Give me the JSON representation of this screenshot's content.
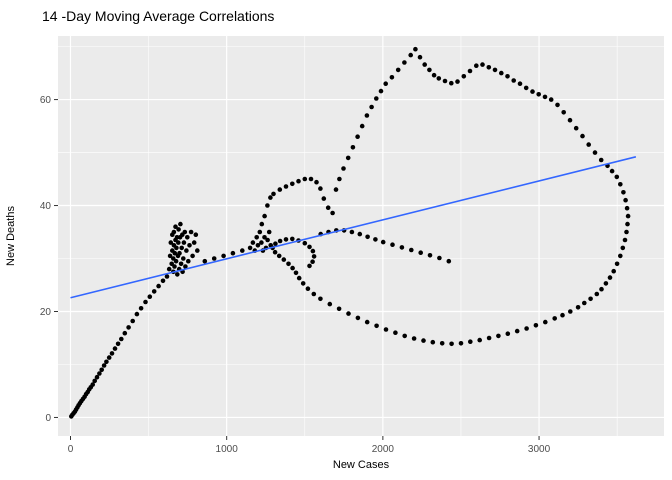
{
  "chart_data": {
    "type": "scatter",
    "title": "14 -Day Moving Average Correlations",
    "xlabel": "New Cases",
    "ylabel": "New Deaths",
    "xlim": [
      -80,
      3800
    ],
    "ylim": [
      -3.5,
      72
    ],
    "x_ticks": [
      0,
      1000,
      2000,
      3000
    ],
    "x_minor_ticks": [
      500,
      1500,
      2500,
      3500
    ],
    "y_ticks": [
      0,
      20,
      40,
      60
    ],
    "y_minor_ticks": [
      10,
      30,
      50,
      70
    ],
    "grid": true,
    "legend_position": "none",
    "panel_bg": "#EBEBEB",
    "grid_major_color": "#FFFFFF",
    "grid_minor_color": "#FFFFFF",
    "tick_mark_color": "#333333",
    "axis_text_color": "#4D4D4D",
    "axis_title_color": "#000000",
    "point_color": "#000000",
    "trend_color": "#3366FF",
    "trend_line": {
      "x1": 0,
      "y1": 22.6,
      "x2": 3620,
      "y2": 49.2
    },
    "points": [
      [
        5,
        0.2
      ],
      [
        12,
        0.5
      ],
      [
        20,
        0.8
      ],
      [
        28,
        1.1
      ],
      [
        36,
        1.5
      ],
      [
        44,
        1.9
      ],
      [
        52,
        2.3
      ],
      [
        60,
        2.7
      ],
      [
        70,
        3.1
      ],
      [
        80,
        3.5
      ],
      [
        90,
        3.9
      ],
      [
        100,
        4.4
      ],
      [
        110,
        4.8
      ],
      [
        120,
        5.3
      ],
      [
        130,
        5.7
      ],
      [
        142,
        6.2
      ],
      [
        155,
        6.9
      ],
      [
        170,
        7.6
      ],
      [
        185,
        8.3
      ],
      [
        200,
        9.0
      ],
      [
        215,
        9.8
      ],
      [
        230,
        10.5
      ],
      [
        248,
        11.3
      ],
      [
        266,
        12.1
      ],
      [
        285,
        13.0
      ],
      [
        305,
        13.9
      ],
      [
        325,
        14.8
      ],
      [
        348,
        15.9
      ],
      [
        372,
        17.0
      ],
      [
        398,
        18.2
      ],
      [
        425,
        19.5
      ],
      [
        452,
        20.6
      ],
      [
        480,
        21.8
      ],
      [
        508,
        22.8
      ],
      [
        536,
        23.8
      ],
      [
        564,
        24.8
      ],
      [
        592,
        25.8
      ],
      [
        618,
        26.6
      ],
      [
        632,
        28.0
      ],
      [
        638,
        30.5
      ],
      [
        642,
        33.0
      ],
      [
        648,
        29.0
      ],
      [
        652,
        31.5
      ],
      [
        652,
        34.5
      ],
      [
        658,
        27.5
      ],
      [
        658,
        30.0
      ],
      [
        662,
        32.5
      ],
      [
        662,
        35.0
      ],
      [
        666,
        28.5
      ],
      [
        668,
        31.0
      ],
      [
        672,
        33.5
      ],
      [
        672,
        36.0
      ],
      [
        676,
        29.5
      ],
      [
        678,
        32.0
      ],
      [
        682,
        34.0
      ],
      [
        684,
        27.0
      ],
      [
        688,
        30.5
      ],
      [
        690,
        33.0
      ],
      [
        692,
        35.5
      ],
      [
        696,
        28.0
      ],
      [
        698,
        31.0
      ],
      [
        702,
        34.0
      ],
      [
        704,
        36.5
      ],
      [
        708,
        29.0
      ],
      [
        712,
        32.0
      ],
      [
        716,
        34.5
      ],
      [
        718,
        27.5
      ],
      [
        722,
        30.0
      ],
      [
        726,
        33.0
      ],
      [
        732,
        35.0
      ],
      [
        736,
        28.5
      ],
      [
        742,
        31.5
      ],
      [
        748,
        34.0
      ],
      [
        754,
        29.5
      ],
      [
        762,
        32.5
      ],
      [
        772,
        35.0
      ],
      [
        782,
        30.5
      ],
      [
        792,
        33.0
      ],
      [
        802,
        34.5
      ],
      [
        812,
        31.5
      ],
      [
        860,
        29.5
      ],
      [
        920,
        30.0
      ],
      [
        980,
        30.5
      ],
      [
        1040,
        31.0
      ],
      [
        1100,
        31.5
      ],
      [
        1150,
        32.0
      ],
      [
        1168,
        33.0
      ],
      [
        1180,
        31.5
      ],
      [
        1192,
        34.0
      ],
      [
        1200,
        32.5
      ],
      [
        1212,
        35.0
      ],
      [
        1222,
        33.0
      ],
      [
        1232,
        31.5
      ],
      [
        1242,
        34.0
      ],
      [
        1252,
        32.0
      ],
      [
        1262,
        33.5
      ],
      [
        1272,
        35.0
      ],
      [
        1282,
        32.5
      ],
      [
        1225,
        36.5
      ],
      [
        1243,
        38.0
      ],
      [
        1261,
        40.0
      ],
      [
        1280,
        41.5
      ],
      [
        1300,
        42.2
      ],
      [
        1340,
        43.0
      ],
      [
        1380,
        43.6
      ],
      [
        1420,
        44.1
      ],
      [
        1460,
        44.6
      ],
      [
        1500,
        45.0
      ],
      [
        1540,
        45.0
      ],
      [
        1575,
        44.4
      ],
      [
        1600,
        43.2
      ],
      [
        1622,
        41.3
      ],
      [
        1650,
        39.6
      ],
      [
        1678,
        38.6
      ],
      [
        1700,
        43.0
      ],
      [
        1722,
        45.0
      ],
      [
        1748,
        47.0
      ],
      [
        1778,
        49.0
      ],
      [
        1808,
        51.0
      ],
      [
        1838,
        53.0
      ],
      [
        1868,
        55.0
      ],
      [
        1898,
        57.0
      ],
      [
        1928,
        58.6
      ],
      [
        1958,
        60.2
      ],
      [
        1988,
        61.6
      ],
      [
        2018,
        63.0
      ],
      [
        2058,
        64.2
      ],
      [
        2098,
        65.6
      ],
      [
        2138,
        67.0
      ],
      [
        2178,
        68.4
      ],
      [
        2208,
        69.5
      ],
      [
        2238,
        68.0
      ],
      [
        2268,
        66.6
      ],
      [
        2298,
        65.6
      ],
      [
        2328,
        64.6
      ],
      [
        2358,
        64.0
      ],
      [
        2398,
        63.5
      ],
      [
        2438,
        63.1
      ],
      [
        2478,
        63.4
      ],
      [
        2518,
        64.4
      ],
      [
        2558,
        65.4
      ],
      [
        2598,
        66.4
      ],
      [
        2638,
        66.6
      ],
      [
        2678,
        66.1
      ],
      [
        2718,
        65.6
      ],
      [
        2758,
        65.0
      ],
      [
        2798,
        64.4
      ],
      [
        2838,
        63.6
      ],
      [
        2878,
        63.0
      ],
      [
        2918,
        62.2
      ],
      [
        2958,
        61.5
      ],
      [
        2998,
        61.0
      ],
      [
        3038,
        60.5
      ],
      [
        3078,
        60.0
      ],
      [
        3118,
        59.0
      ],
      [
        3158,
        57.6
      ],
      [
        3198,
        56.1
      ],
      [
        3238,
        54.6
      ],
      [
        3278,
        53.1
      ],
      [
        3318,
        51.5
      ],
      [
        3358,
        50.0
      ],
      [
        3398,
        48.6
      ],
      [
        3438,
        47.5
      ],
      [
        3468,
        46.5
      ],
      [
        3498,
        45.4
      ],
      [
        3520,
        44.0
      ],
      [
        3540,
        42.5
      ],
      [
        3554,
        41.0
      ],
      [
        3564,
        39.5
      ],
      [
        3570,
        38.0
      ],
      [
        3566,
        36.5
      ],
      [
        3560,
        35.0
      ],
      [
        3550,
        33.5
      ],
      [
        3536,
        32.0
      ],
      [
        3520,
        30.5
      ],
      [
        3500,
        29.0
      ],
      [
        3478,
        27.6
      ],
      [
        3454,
        26.4
      ],
      [
        3428,
        25.3
      ],
      [
        3400,
        24.2
      ],
      [
        3370,
        23.3
      ],
      [
        3330,
        22.4
      ],
      [
        3290,
        21.6
      ],
      [
        3250,
        20.8
      ],
      [
        3200,
        20.0
      ],
      [
        3150,
        19.3
      ],
      [
        3100,
        18.7
      ],
      [
        3040,
        18.0
      ],
      [
        2980,
        17.4
      ],
      [
        2920,
        16.8
      ],
      [
        2860,
        16.3
      ],
      [
        2800,
        15.8
      ],
      [
        2740,
        15.4
      ],
      [
        2680,
        15.0
      ],
      [
        2620,
        14.6
      ],
      [
        2560,
        14.3
      ],
      [
        2500,
        14.0
      ],
      [
        2440,
        13.9
      ],
      [
        2380,
        14.0
      ],
      [
        2320,
        14.2
      ],
      [
        2260,
        14.5
      ],
      [
        2200,
        14.9
      ],
      [
        2140,
        15.4
      ],
      [
        2080,
        16.0
      ],
      [
        2020,
        16.6
      ],
      [
        1960,
        17.3
      ],
      [
        1900,
        18.0
      ],
      [
        1840,
        18.8
      ],
      [
        1780,
        19.6
      ],
      [
        1720,
        20.5
      ],
      [
        1660,
        21.4
      ],
      [
        1600,
        22.4
      ],
      [
        1558,
        23.3
      ],
      [
        1520,
        24.3
      ],
      [
        1490,
        25.3
      ],
      [
        1464,
        26.3
      ],
      [
        1444,
        27.3
      ],
      [
        1422,
        28.2
      ],
      [
        1396,
        29.0
      ],
      [
        1366,
        29.8
      ],
      [
        1336,
        30.5
      ],
      [
        1310,
        31.2
      ],
      [
        1294,
        32.0
      ],
      [
        1312,
        32.8
      ],
      [
        1342,
        33.3
      ],
      [
        1380,
        33.6
      ],
      [
        1420,
        33.7
      ],
      [
        1460,
        33.4
      ],
      [
        1500,
        32.9
      ],
      [
        1530,
        32.2
      ],
      [
        1552,
        31.4
      ],
      [
        1560,
        30.4
      ],
      [
        1550,
        29.4
      ],
      [
        1530,
        28.6
      ],
      [
        1602,
        34.6
      ],
      [
        1652,
        35.0
      ],
      [
        1702,
        35.3
      ],
      [
        1752,
        35.3
      ],
      [
        1802,
        35.0
      ],
      [
        1852,
        34.6
      ],
      [
        1902,
        34.1
      ],
      [
        1952,
        33.6
      ],
      [
        2002,
        33.1
      ],
      [
        2062,
        32.6
      ],
      [
        2122,
        32.1
      ],
      [
        2182,
        31.6
      ],
      [
        2242,
        31.1
      ],
      [
        2302,
        30.6
      ],
      [
        2362,
        30.1
      ],
      [
        2422,
        29.5
      ]
    ]
  }
}
